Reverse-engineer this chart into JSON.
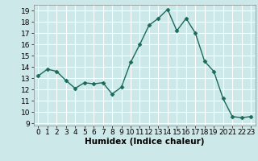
{
  "x": [
    0,
    1,
    2,
    3,
    4,
    5,
    6,
    7,
    8,
    9,
    10,
    11,
    12,
    13,
    14,
    15,
    16,
    17,
    18,
    19,
    20,
    21,
    22,
    23
  ],
  "y": [
    13.2,
    13.8,
    13.6,
    12.8,
    12.1,
    12.6,
    12.5,
    12.6,
    11.6,
    12.2,
    14.4,
    16.0,
    17.7,
    18.3,
    19.1,
    17.2,
    18.3,
    17.0,
    14.5,
    13.6,
    11.2,
    9.6,
    9.5,
    9.6
  ],
  "line_color": "#1a6b5a",
  "marker": "D",
  "marker_size": 2.5,
  "bg_color": "#cce8e8",
  "grid_color": "#ffffff",
  "xlabel": "Humidex (Indice chaleur)",
  "xlim": [
    -0.5,
    23.5
  ],
  "ylim": [
    8.8,
    19.5
  ],
  "yticks": [
    9,
    10,
    11,
    12,
    13,
    14,
    15,
    16,
    17,
    18,
    19
  ],
  "xticks": [
    0,
    1,
    2,
    3,
    4,
    5,
    6,
    7,
    8,
    9,
    10,
    11,
    12,
    13,
    14,
    15,
    16,
    17,
    18,
    19,
    20,
    21,
    22,
    23
  ],
  "xlabel_fontsize": 7.5,
  "tick_fontsize": 6.5,
  "line_width": 1.0
}
